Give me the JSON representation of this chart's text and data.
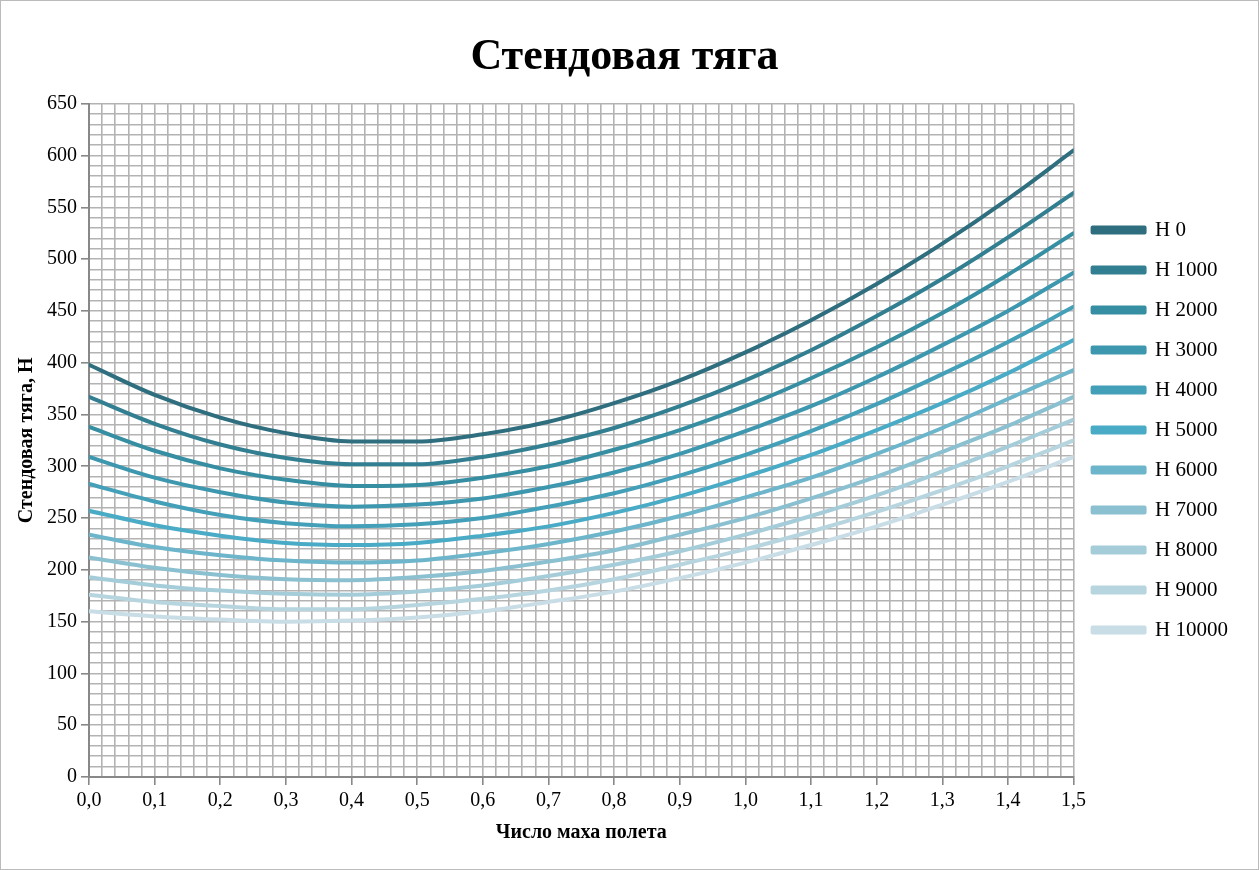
{
  "chart_data": {
    "type": "line",
    "title": "Стендовая тяга",
    "xlabel": "Число маха полета",
    "ylabel": "Стендовая тяга, Н",
    "x": [
      0,
      0.1,
      0.2,
      0.3,
      0.4,
      0.5,
      0.6,
      0.7,
      0.8,
      0.9,
      1.0,
      1.1,
      1.2,
      1.3,
      1.4,
      1.5
    ],
    "series": [
      {
        "name": "H 0",
        "color": "#2e6e7e",
        "values": [
          398,
          369,
          347,
          332,
          324,
          324,
          331,
          343,
          361,
          383,
          410,
          441,
          476,
          515,
          558,
          605
        ]
      },
      {
        "name": "H 1000",
        "color": "#327f91",
        "values": [
          367,
          341,
          321,
          308,
          302,
          302,
          309,
          321,
          337,
          358,
          383,
          412,
          445,
          481,
          521,
          564
        ]
      },
      {
        "name": "H 2000",
        "color": "#368ea2",
        "values": [
          338,
          315,
          298,
          287,
          281,
          282,
          289,
          300,
          316,
          335,
          358,
          385,
          415,
          448,
          485,
          525
        ]
      },
      {
        "name": "H 3000",
        "color": "#3d97ae",
        "values": [
          309,
          289,
          275,
          265,
          261,
          263,
          269,
          280,
          294,
          312,
          334,
          358,
          386,
          417,
          450,
          487
        ]
      },
      {
        "name": "H 4000",
        "color": "#43a0b8",
        "values": [
          283,
          266,
          253,
          245,
          242,
          244,
          250,
          261,
          274,
          291,
          311,
          334,
          360,
          389,
          420,
          454
        ]
      },
      {
        "name": "H 5000",
        "color": "#4aabc6",
        "values": [
          257,
          243,
          233,
          226,
          224,
          226,
          233,
          242,
          255,
          271,
          290,
          311,
          335,
          361,
          390,
          422
        ]
      },
      {
        "name": "H 6000",
        "color": "#6cb5ca",
        "values": [
          234,
          222,
          214,
          209,
          207,
          209,
          216,
          225,
          237,
          252,
          270,
          289,
          312,
          337,
          365,
          393
        ]
      },
      {
        "name": "H 7000",
        "color": "#8bc0d1",
        "values": [
          212,
          202,
          195,
          191,
          190,
          193,
          199,
          208,
          219,
          234,
          250,
          269,
          290,
          314,
          339,
          367
        ]
      },
      {
        "name": "H 8000",
        "color": "#a5ccd9",
        "values": [
          193,
          185,
          180,
          177,
          176,
          179,
          185,
          194,
          205,
          218,
          234,
          252,
          272,
          295,
          319,
          345
        ]
      },
      {
        "name": "H 9000",
        "color": "#b7d5df",
        "values": [
          176,
          169,
          165,
          162,
          162,
          166,
          172,
          180,
          191,
          205,
          220,
          237,
          256,
          277,
          300,
          325
        ]
      },
      {
        "name": "H 10000",
        "color": "#c8dde5",
        "values": [
          160,
          155,
          152,
          150,
          151,
          154,
          160,
          169,
          179,
          192,
          207,
          224,
          242,
          263,
          285,
          309
        ]
      }
    ],
    "xlim": [
      0,
      1.5
    ],
    "xticks": [
      {
        "value": 0,
        "label": "0,0"
      },
      {
        "value": 0.02,
        "label": null
      },
      {
        "value": 0.04,
        "label": null
      },
      {
        "value": 0.06,
        "label": null
      },
      {
        "value": 0.08,
        "label": null
      },
      {
        "value": 0.1,
        "label": "0,1"
      },
      {
        "value": 0.12,
        "label": null
      },
      {
        "value": 0.14,
        "label": null
      },
      {
        "value": 0.16,
        "label": null
      },
      {
        "value": 0.18,
        "label": null
      },
      {
        "value": 0.2,
        "label": "0,2"
      },
      {
        "value": 0.22,
        "label": null
      },
      {
        "value": 0.24,
        "label": null
      },
      {
        "value": 0.26,
        "label": null
      },
      {
        "value": 0.28,
        "label": null
      },
      {
        "value": 0.3,
        "label": "0,3"
      },
      {
        "value": 0.32,
        "label": null
      },
      {
        "value": 0.34,
        "label": null
      },
      {
        "value": 0.36,
        "label": null
      },
      {
        "value": 0.38,
        "label": null
      },
      {
        "value": 0.4,
        "label": "0,4"
      },
      {
        "value": 0.42,
        "label": null
      },
      {
        "value": 0.44,
        "label": null
      },
      {
        "value": 0.46,
        "label": null
      },
      {
        "value": 0.48,
        "label": null
      },
      {
        "value": 0.5,
        "label": "0,5"
      },
      {
        "value": 0.52,
        "label": null
      },
      {
        "value": 0.54,
        "label": null
      },
      {
        "value": 0.56,
        "label": null
      },
      {
        "value": 0.58,
        "label": null
      },
      {
        "value": 0.6,
        "label": "0,6"
      },
      {
        "value": 0.62,
        "label": null
      },
      {
        "value": 0.64,
        "label": null
      },
      {
        "value": 0.66,
        "label": null
      },
      {
        "value": 0.68,
        "label": null
      },
      {
        "value": 0.7,
        "label": "0,7"
      },
      {
        "value": 0.72,
        "label": null
      },
      {
        "value": 0.74,
        "label": null
      },
      {
        "value": 0.76,
        "label": null
      },
      {
        "value": 0.78,
        "label": null
      },
      {
        "value": 0.8,
        "label": "0,8"
      },
      {
        "value": 0.82,
        "label": null
      },
      {
        "value": 0.84,
        "label": null
      },
      {
        "value": 0.86,
        "label": null
      },
      {
        "value": 0.88,
        "label": null
      },
      {
        "value": 0.9,
        "label": "0,9"
      },
      {
        "value": 0.92,
        "label": null
      },
      {
        "value": 0.94,
        "label": null
      },
      {
        "value": 0.96,
        "label": null
      },
      {
        "value": 0.98,
        "label": null
      },
      {
        "value": 1.0,
        "label": "1,0"
      },
      {
        "value": 1.02,
        "label": null
      },
      {
        "value": 1.04,
        "label": null
      },
      {
        "value": 1.06,
        "label": null
      },
      {
        "value": 1.08,
        "label": null
      },
      {
        "value": 1.1,
        "label": "1,1"
      },
      {
        "value": 1.12,
        "label": null
      },
      {
        "value": 1.14,
        "label": null
      },
      {
        "value": 1.16,
        "label": null
      },
      {
        "value": 1.18,
        "label": null
      },
      {
        "value": 1.2,
        "label": "1,2"
      },
      {
        "value": 1.22,
        "label": null
      },
      {
        "value": 1.24,
        "label": null
      },
      {
        "value": 1.26,
        "label": null
      },
      {
        "value": 1.28,
        "label": null
      },
      {
        "value": 1.3,
        "label": "1,3"
      },
      {
        "value": 1.32,
        "label": null
      },
      {
        "value": 1.34,
        "label": null
      },
      {
        "value": 1.36,
        "label": null
      },
      {
        "value": 1.38,
        "label": null
      },
      {
        "value": 1.4,
        "label": "1,4"
      },
      {
        "value": 1.42,
        "label": null
      },
      {
        "value": 1.44,
        "label": null
      },
      {
        "value": 1.46,
        "label": null
      },
      {
        "value": 1.48,
        "label": null
      },
      {
        "value": 1.5,
        "label": "1,5"
      }
    ],
    "ylim": [
      0,
      650
    ],
    "yticks": [
      0,
      {
        "value": 10,
        "label": null
      },
      {
        "value": 20,
        "label": null
      },
      {
        "value": 30,
        "label": null
      },
      {
        "value": 40,
        "label": null
      },
      50,
      {
        "value": 60,
        "label": null
      },
      {
        "value": 70,
        "label": null
      },
      {
        "value": 80,
        "label": null
      },
      {
        "value": 90,
        "label": null
      },
      100,
      {
        "value": 110,
        "label": null
      },
      {
        "value": 120,
        "label": null
      },
      {
        "value": 130,
        "label": null
      },
      {
        "value": 140,
        "label": null
      },
      150,
      {
        "value": 160,
        "label": null
      },
      {
        "value": 170,
        "label": null
      },
      {
        "value": 180,
        "label": null
      },
      {
        "value": 190,
        "label": null
      },
      200,
      {
        "value": 210,
        "label": null
      },
      {
        "value": 220,
        "label": null
      },
      {
        "value": 230,
        "label": null
      },
      {
        "value": 240,
        "label": null
      },
      250,
      {
        "value": 260,
        "label": null
      },
      {
        "value": 270,
        "label": null
      },
      {
        "value": 280,
        "label": null
      },
      {
        "value": 290,
        "label": null
      },
      300,
      {
        "value": 310,
        "label": null
      },
      {
        "value": 320,
        "label": null
      },
      {
        "value": 330,
        "label": null
      },
      {
        "value": 340,
        "label": null
      },
      350,
      {
        "value": 360,
        "label": null
      },
      {
        "value": 370,
        "label": null
      },
      {
        "value": 380,
        "label": null
      },
      {
        "value": 390,
        "label": null
      },
      400,
      {
        "value": 410,
        "label": null
      },
      {
        "value": 420,
        "label": null
      },
      {
        "value": 430,
        "label": null
      },
      {
        "value": 440,
        "label": null
      },
      450,
      {
        "value": 460,
        "label": null
      },
      {
        "value": 470,
        "label": null
      },
      {
        "value": 480,
        "label": null
      },
      {
        "value": 490,
        "label": null
      },
      500,
      {
        "value": 510,
        "label": null
      },
      {
        "value": 520,
        "label": null
      },
      {
        "value": 530,
        "label": null
      },
      {
        "value": 540,
        "label": null
      },
      550,
      {
        "value": 560,
        "label": null
      },
      {
        "value": 570,
        "label": null
      },
      {
        "value": 580,
        "label": null
      },
      {
        "value": 590,
        "label": null
      },
      600,
      {
        "value": 610,
        "label": null
      },
      {
        "value": 620,
        "label": null
      },
      {
        "value": 630,
        "label": null
      },
      {
        "value": 640,
        "label": null
      },
      650
    ],
    "grid": true,
    "legend": "right",
    "marker": "none",
    "line_style": "solid"
  }
}
